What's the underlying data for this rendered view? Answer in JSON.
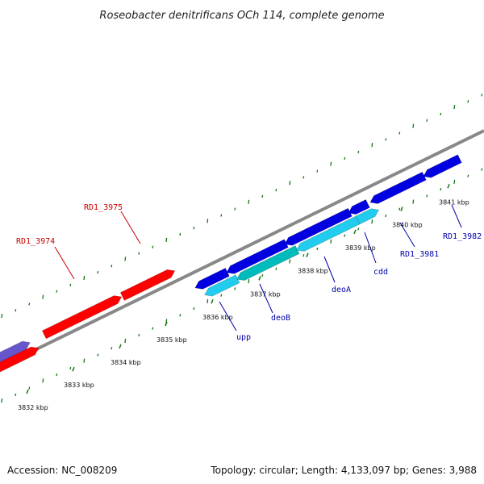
{
  "title": "Roseobacter denitrificans OCh 114, complete genome",
  "accession": "Accession: NC_008209",
  "topology": "Topology: circular; Length: 4,133,097 bp; Genes: 3,988",
  "colors": {
    "forward_gene": "#ff0000",
    "reverse_gene": "#0000e0",
    "gene_cyan": "#22ccee",
    "gene_teal": "#00bbbb",
    "gene_purple": "#6655cc",
    "backbone": "#888888",
    "gc_tick": "#117711",
    "forward_label": "#cc0000",
    "reverse_label": "#0000aa"
  },
  "position_scale": [
    "3832 kbp",
    "3833 kbp",
    "3834 kbp",
    "3835 kbp",
    "3836 kbp",
    "3837 kbp",
    "3838 kbp",
    "3839 kbp",
    "3840 kbp",
    "3841 kbp"
  ],
  "forward_labels": [
    "RD1_3974",
    "RD1_3975"
  ],
  "reverse_labels": [
    "upp",
    "deoB",
    "deoA",
    "cdd",
    "RD1_3981",
    "RD1_3982"
  ]
}
